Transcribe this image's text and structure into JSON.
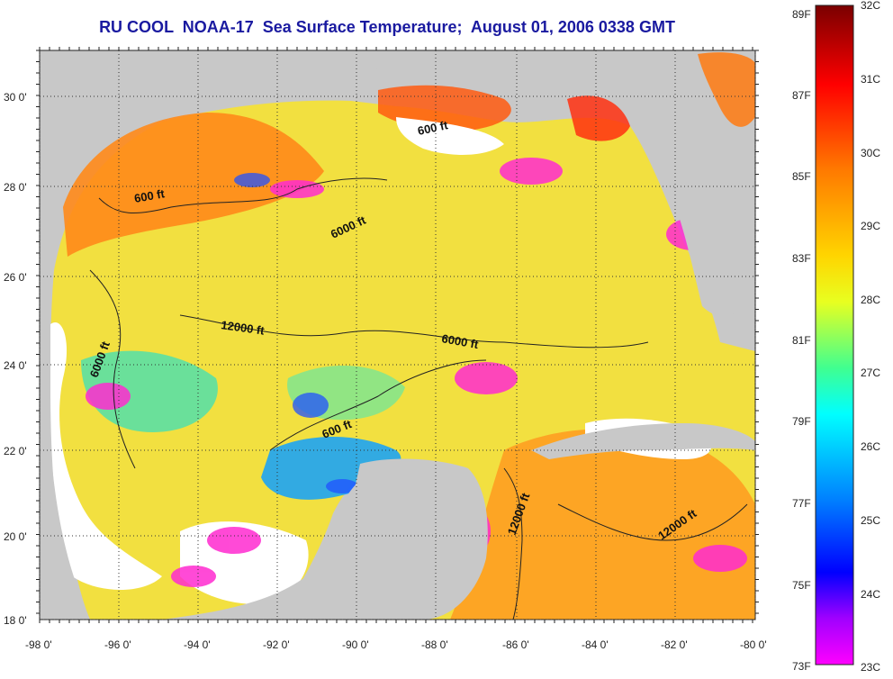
{
  "title": "RU COOL  NOAA-17  Sea Surface Temperature;  August 01, 2006 0338 GMT",
  "lat_ticks": [
    "30 0'",
    "28 0'",
    "26 0'",
    "24 0'",
    "22 0'",
    "20 0'",
    "18 0'"
  ],
  "lon_ticks": [
    "-98 0'",
    "-96 0'",
    "-94 0'",
    "-92 0'",
    "-90 0'",
    "-88 0'",
    "-86 0'",
    "-84 0'",
    "-82 0'",
    "-80 0'"
  ],
  "isobaths": [
    "600 ft",
    "600 ft",
    "6000 ft",
    "12000 ft",
    "6000 ft",
    "6000 ft",
    "600 ft",
    "12000 ft",
    "12000 ft"
  ],
  "colorbar": {
    "fahrenheit": [
      "89F",
      "87F",
      "85F",
      "83F",
      "81F",
      "79F",
      "77F",
      "75F",
      "73F"
    ],
    "celsius": [
      "32C",
      "31C",
      "30C",
      "29C",
      "28C",
      "27C",
      "26C",
      "25C",
      "24C",
      "23C"
    ]
  },
  "colors": {
    "land": "#c8c8c8",
    "cloud": "#ffffff",
    "title": "#1a1aa0"
  }
}
